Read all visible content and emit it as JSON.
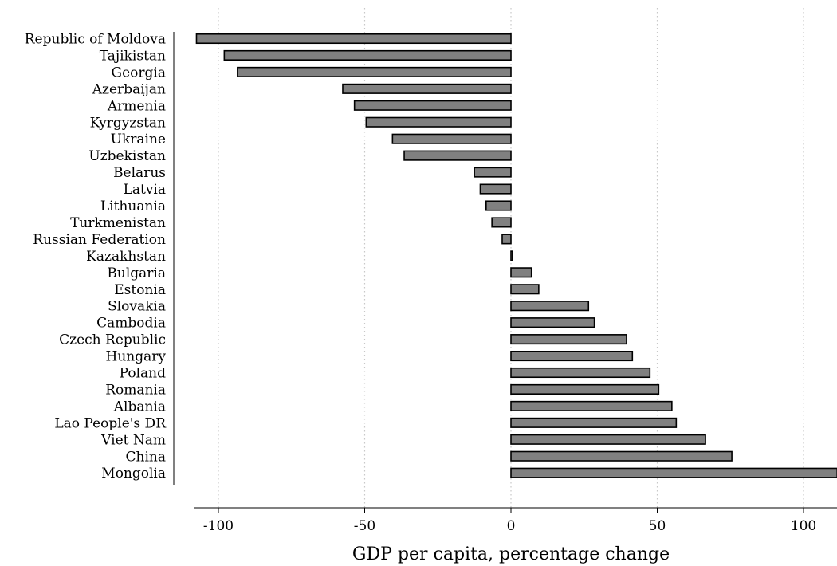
{
  "chart_data": {
    "type": "bar",
    "orientation": "horizontal",
    "categories": [
      "Republic of Moldova",
      "Tajikistan",
      "Georgia",
      "Azerbaijan",
      "Armenia",
      "Kyrgyzstan",
      "Ukraine",
      "Uzbekistan",
      "Belarus",
      "Latvia",
      "Lithuania",
      "Turkmenistan",
      "Russian Federation",
      "Kazakhstan",
      "Bulgaria",
      "Estonia",
      "Slovakia",
      "Cambodia",
      "Czech Republic",
      "Hungary",
      "Poland",
      "Romania",
      "Albania",
      "Lao People's DR",
      "Viet Nam",
      "China",
      "Mongolia"
    ],
    "values": [
      -107.5,
      -98,
      -93.5,
      -57.5,
      -53.5,
      -49.5,
      -40.5,
      -36.5,
      -12.5,
      -10.5,
      -8.5,
      -6.5,
      -3,
      0.5,
      7,
      9.5,
      26.5,
      28.5,
      39.5,
      41.5,
      47.5,
      50.5,
      55,
      56.5,
      66.5,
      75.5,
      111.5
    ],
    "title": "",
    "xlabel": "GDP per capita, percentage change",
    "ylabel": "",
    "xlim": [
      -110,
      111.5
    ],
    "xticks": [
      -100,
      -50,
      0,
      50,
      100
    ],
    "xtick_labels": [
      "-100",
      "-50",
      "0",
      "50",
      "100"
    ],
    "grid": "vertical dotted lines at x ticks",
    "legend": "none",
    "colors": {
      "bar_fill": "#808080",
      "bar_stroke": "#000000",
      "grid": "#c8c8c8"
    }
  }
}
